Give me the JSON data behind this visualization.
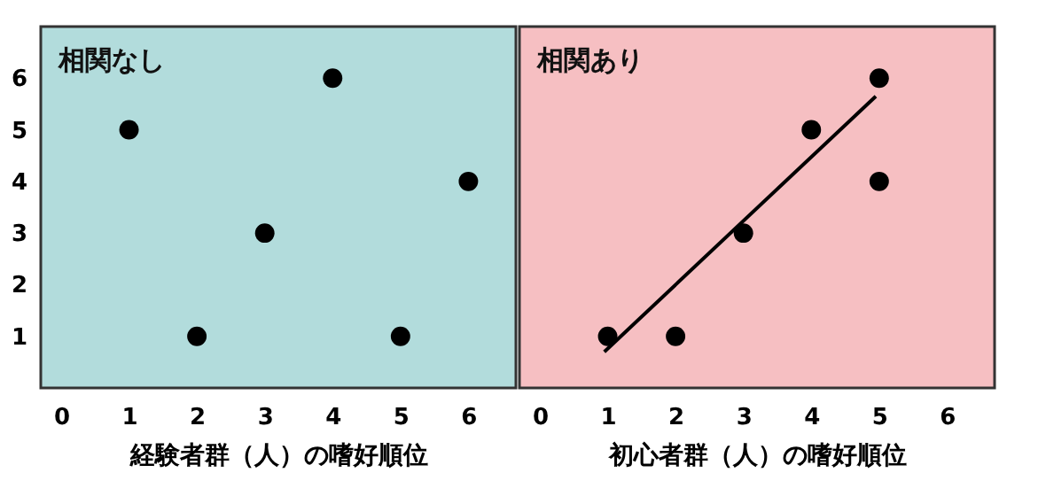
{
  "chart_data": [
    {
      "type": "scatter",
      "title": "相関なし",
      "xlabel": "経験者群（人）の嗜好順位",
      "xlim": [
        -0.3,
        6.7
      ],
      "ylim": [
        0,
        7
      ],
      "xticks": [
        0,
        1,
        2,
        3,
        4,
        5,
        6
      ],
      "yticks": [
        1,
        2,
        3,
        4,
        5,
        6
      ],
      "marker": "circle",
      "grid": false,
      "series": [
        {
          "color": "#000000",
          "x": [
            1,
            2,
            3,
            4,
            5,
            6
          ],
          "values": [
            5,
            1,
            3,
            6,
            1,
            4
          ]
        }
      ]
    },
    {
      "type": "scatter",
      "title": "相関あり",
      "xlabel": "初心者群（人）の嗜好順位",
      "xlim": [
        -0.3,
        6.7
      ],
      "ylim": [
        0,
        7
      ],
      "xticks": [
        0,
        1,
        2,
        3,
        4,
        5,
        6
      ],
      "yticks": [
        1,
        2,
        3,
        4,
        5,
        6
      ],
      "tick_labels": "x",
      "marker": "circle",
      "grid": false,
      "series": [
        {
          "color": "#000000",
          "x": [
            1,
            2,
            3,
            4,
            5,
            5
          ],
          "values": [
            1,
            1,
            3,
            5,
            6,
            4
          ]
        },
        {
          "type": "line",
          "marker": "none",
          "color": "#000000",
          "x": [
            0.95,
            4.95
          ],
          "values": [
            0.7,
            5.65
          ]
        }
      ]
    }
  ]
}
